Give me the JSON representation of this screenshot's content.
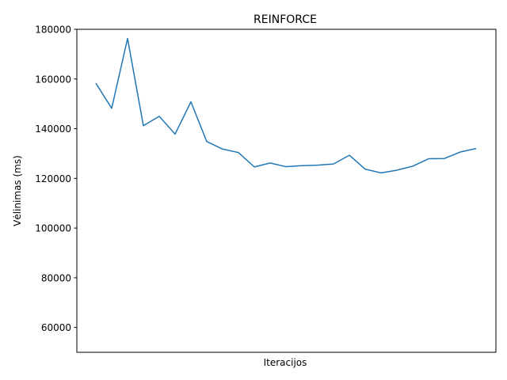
{
  "chart_data": {
    "type": "line",
    "title": "REINFORCE",
    "xlabel": "Iteracijos",
    "ylabel": "Vėlinimas (ms)",
    "ylim": [
      50000,
      180000
    ],
    "yticks": [
      60000,
      80000,
      100000,
      120000,
      140000,
      160000,
      180000
    ],
    "xticks_visible": false,
    "grid": false,
    "colors": {
      "line": "#1f77b4",
      "axes": "#000000",
      "background": "#ffffff"
    },
    "series": [
      {
        "values": [
          158300,
          148200,
          176300,
          141200,
          145000,
          137800,
          150800,
          134800,
          131800,
          130400,
          124600,
          126200,
          124700,
          125100,
          125300,
          125800,
          129300,
          123700,
          122200,
          123300,
          124900,
          127900,
          128000,
          130600,
          132000
        ]
      }
    ]
  }
}
